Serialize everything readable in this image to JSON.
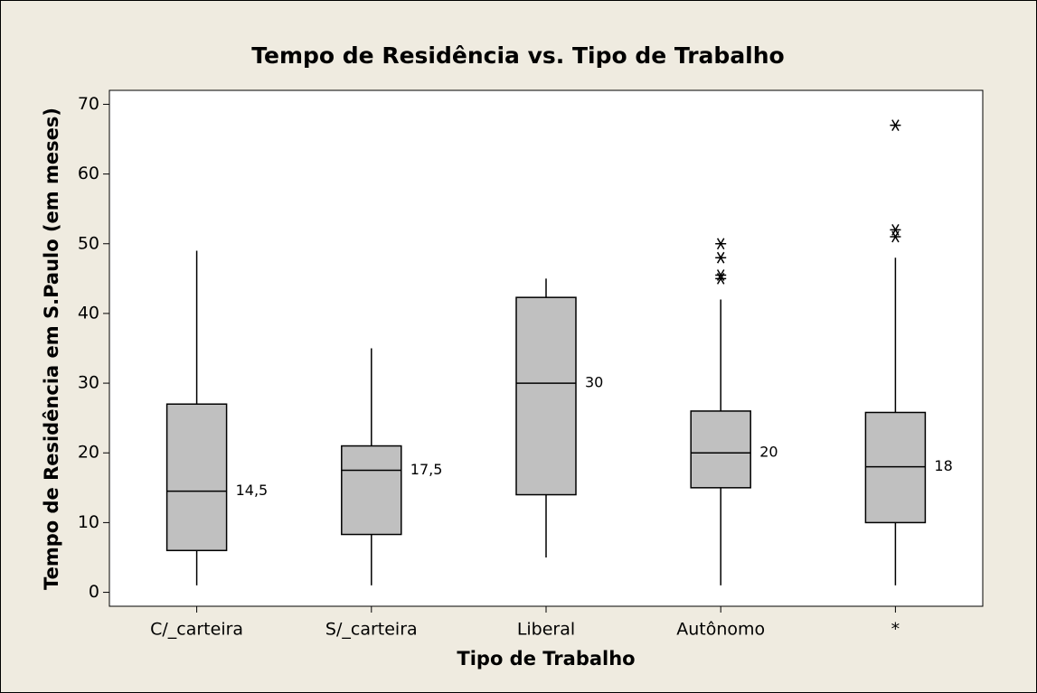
{
  "chart_data": {
    "type": "box",
    "title": "Tempo de Residência vs. Tipo de Trabalho",
    "x_label": "Tipo de Trabalho",
    "y_label": "Tempo de Residência em S.Paulo (em meses)",
    "categories": [
      "C/_carteira",
      "S/_carteira",
      "Liberal",
      "Autônomo",
      "*"
    ],
    "whisker_low": [
      1,
      1,
      5,
      1,
      1
    ],
    "q1": [
      6,
      8.3,
      14,
      15,
      10
    ],
    "median": [
      14.5,
      17.5,
      30,
      20,
      18
    ],
    "value_labels": [
      "14,5",
      "17,5",
      "30",
      "20",
      "18"
    ],
    "q3": [
      27,
      21,
      42.3,
      26,
      25.8
    ],
    "whisker_high": [
      49,
      35,
      45,
      42,
      48
    ],
    "outliers": [
      [],
      [],
      [],
      [
        50,
        48,
        45.5,
        45
      ],
      [
        67,
        52,
        51
      ]
    ],
    "color": "#c0c0c0",
    "ylim": [
      -2,
      72
    ],
    "yticks": [
      0,
      10,
      20,
      30,
      40,
      50,
      60,
      70
    ]
  }
}
